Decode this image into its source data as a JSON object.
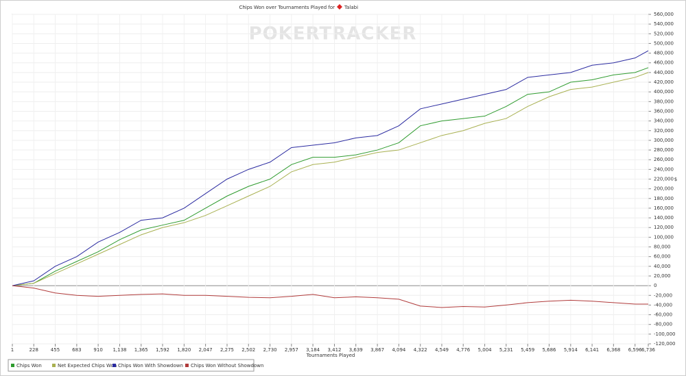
{
  "chart_data": {
    "type": "line",
    "title": "Chips Won over Tournaments Played for",
    "player": "Talabi",
    "watermark": "POKERTRACKER",
    "x_label": "Tournaments Played",
    "y_label": "$",
    "grid": true,
    "legend": "bottom-left",
    "x": [
      1,
      228,
      455,
      683,
      910,
      1138,
      1365,
      1592,
      1820,
      2047,
      2275,
      2502,
      2730,
      2957,
      3184,
      3412,
      3639,
      3867,
      4094,
      4322,
      4549,
      4776,
      5004,
      5231,
      5459,
      5686,
      5914,
      6141,
      6368,
      6596,
      6736
    ],
    "xlim": [
      1,
      6736
    ],
    "xticks": [
      1,
      228,
      455,
      683,
      910,
      {
        "value": 1138,
        "label": "1,138"
      },
      {
        "value": 1365,
        "label": "1,365"
      },
      {
        "value": 1592,
        "label": "1,592"
      },
      {
        "value": 1820,
        "label": "1,820"
      },
      {
        "value": 2047,
        "label": "2,047"
      },
      {
        "value": 2275,
        "label": "2,275"
      },
      {
        "value": 2502,
        "label": "2,502"
      },
      {
        "value": 2730,
        "label": "2,730"
      },
      {
        "value": 2957,
        "label": "2,957"
      },
      {
        "value": 3184,
        "label": "3,184"
      },
      {
        "value": 3412,
        "label": "3,412"
      },
      {
        "value": 3639,
        "label": "3,639"
      },
      {
        "value": 3867,
        "label": "3,867"
      },
      {
        "value": 4094,
        "label": "4,094"
      },
      {
        "value": 4322,
        "label": "4,322"
      },
      {
        "value": 4549,
        "label": "4,549"
      },
      {
        "value": 4776,
        "label": "4,776"
      },
      {
        "value": 5004,
        "label": "5,004"
      },
      {
        "value": 5231,
        "label": "5,231"
      },
      {
        "value": 5459,
        "label": "5,459"
      },
      {
        "value": 5686,
        "label": "5,686"
      },
      {
        "value": 5914,
        "label": "5,914"
      },
      {
        "value": 6141,
        "label": "6,141"
      },
      {
        "value": 6368,
        "label": "6,368"
      },
      {
        "value": 6596,
        "label": "6,596"
      },
      {
        "value": 6736,
        "label": "6,736"
      }
    ],
    "ylim": [
      -120000,
      560000
    ],
    "yticks": [
      {
        "value": -120000,
        "label": "-120,000"
      },
      {
        "value": -100000,
        "label": "-100,000"
      },
      {
        "value": -80000,
        "label": "-80,000"
      },
      {
        "value": -60000,
        "label": "-60,000"
      },
      {
        "value": -40000,
        "label": "-40,000"
      },
      {
        "value": -20000,
        "label": "-20,000"
      },
      0,
      {
        "value": 20000,
        "label": "20,000"
      },
      {
        "value": 40000,
        "label": "40,000"
      },
      {
        "value": 60000,
        "label": "60,000"
      },
      {
        "value": 80000,
        "label": "80,000"
      },
      {
        "value": 100000,
        "label": "100,000"
      },
      {
        "value": 120000,
        "label": "120,000"
      },
      {
        "value": 140000,
        "label": "140,000"
      },
      {
        "value": 160000,
        "label": "160,000"
      },
      {
        "value": 180000,
        "label": "180,000"
      },
      {
        "value": 200000,
        "label": "200,000"
      },
      {
        "value": 220000,
        "label": "220,000"
      },
      {
        "value": 240000,
        "label": "240,000"
      },
      {
        "value": 260000,
        "label": "260,000"
      },
      {
        "value": 280000,
        "label": "280,000"
      },
      {
        "value": 300000,
        "label": "300,000"
      },
      {
        "value": 320000,
        "label": "320,000"
      },
      {
        "value": 340000,
        "label": "340,000"
      },
      {
        "value": 360000,
        "label": "360,000"
      },
      {
        "value": 380000,
        "label": "380,000"
      },
      {
        "value": 400000,
        "label": "400,000"
      },
      {
        "value": 420000,
        "label": "420,000"
      },
      {
        "value": 440000,
        "label": "440,000"
      },
      {
        "value": 460000,
        "label": "460,000"
      },
      {
        "value": 480000,
        "label": "480,000"
      },
      {
        "value": 500000,
        "label": "500,000"
      },
      {
        "value": 520000,
        "label": "520,000"
      },
      {
        "value": 540000,
        "label": "540,000"
      },
      {
        "value": 560000,
        "label": "560,000"
      }
    ],
    "series": [
      {
        "name": "Chips Won",
        "color": "#2e9b2e",
        "values": [
          0,
          5000,
          30000,
          50000,
          70000,
          95000,
          115000,
          125000,
          135000,
          160000,
          185000,
          205000,
          220000,
          250000,
          265000,
          265000,
          270000,
          280000,
          295000,
          330000,
          340000,
          345000,
          350000,
          370000,
          395000,
          400000,
          420000,
          425000,
          435000,
          440000,
          450000
        ]
      },
      {
        "name": "Net Expected Chips Won",
        "color": "#a8b050",
        "values": [
          0,
          5000,
          25000,
          45000,
          65000,
          85000,
          105000,
          120000,
          130000,
          145000,
          165000,
          185000,
          205000,
          235000,
          250000,
          255000,
          265000,
          275000,
          280000,
          295000,
          310000,
          320000,
          335000,
          345000,
          370000,
          390000,
          405000,
          410000,
          420000,
          430000,
          440000
        ]
      },
      {
        "name": "Chips Won With Showdown",
        "color": "#2a2aa0",
        "values": [
          0,
          10000,
          40000,
          60000,
          90000,
          110000,
          135000,
          140000,
          160000,
          190000,
          220000,
          240000,
          255000,
          285000,
          290000,
          295000,
          305000,
          310000,
          330000,
          365000,
          375000,
          385000,
          395000,
          405000,
          430000,
          435000,
          440000,
          455000,
          460000,
          470000,
          485000
        ]
      },
      {
        "name": "Chips Won Without Showdown",
        "color": "#b03a3a",
        "values": [
          0,
          -5000,
          -15000,
          -20000,
          -22000,
          -20000,
          -18000,
          -17000,
          -20000,
          -20000,
          -22000,
          -24000,
          -25000,
          -22000,
          -18000,
          -25000,
          -23000,
          -25000,
          -28000,
          -42000,
          -45000,
          -43000,
          -44000,
          -40000,
          -35000,
          -32000,
          -30000,
          -32000,
          -35000,
          -38000,
          -38000
        ]
      }
    ]
  }
}
